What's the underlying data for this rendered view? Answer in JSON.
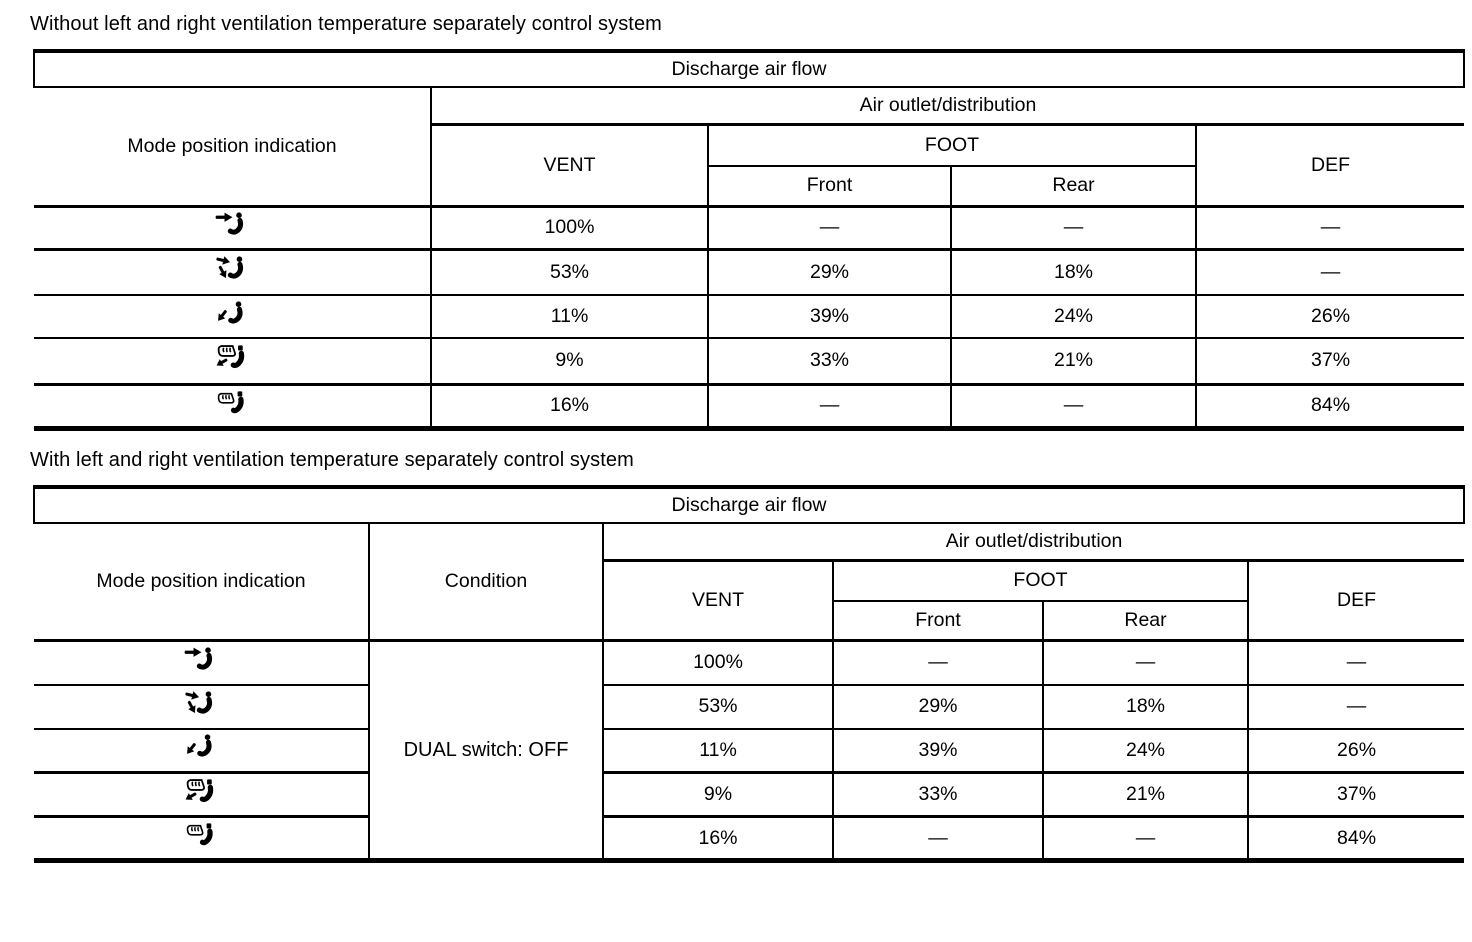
{
  "page_background": "#ffffff",
  "text_color": "#000000",
  "sections": [
    {
      "title": "Without left and right ventilation temperature separately control system",
      "table": {
        "caption": "Discharge air flow",
        "headers": {
          "mode": "Mode position indication",
          "air": "Air outlet/distribution",
          "vent": "VENT",
          "foot": "FOOT",
          "front": "Front",
          "rear": "Rear",
          "def": "DEF"
        },
        "rows": [
          {
            "mode_icon": "vent-mode-icon",
            "vent": "100%",
            "front": "—",
            "rear": "—",
            "def": "—"
          },
          {
            "mode_icon": "bilevel-mode-icon",
            "vent": "53%",
            "front": "29%",
            "rear": "18%",
            "def": "—"
          },
          {
            "mode_icon": "foot-mode-icon",
            "vent": "11%",
            "front": "39%",
            "rear": "24%",
            "def": "26%"
          },
          {
            "mode_icon": "foot-defrost-mode-icon",
            "vent": "9%",
            "front": "33%",
            "rear": "21%",
            "def": "37%"
          },
          {
            "mode_icon": "defrost-mode-icon",
            "vent": "16%",
            "front": "—",
            "rear": "—",
            "def": "84%"
          }
        ]
      }
    },
    {
      "title": "With left and right ventilation temperature separately control system",
      "table": {
        "caption": "Discharge air flow",
        "headers": {
          "mode": "Mode position indication",
          "condition": "Condition",
          "air": "Air outlet/distribution",
          "vent": "VENT",
          "foot": "FOOT",
          "front": "Front",
          "rear": "Rear",
          "def": "DEF"
        },
        "condition_value": "DUAL switch: OFF",
        "rows": [
          {
            "mode_icon": "vent-mode-icon",
            "vent": "100%",
            "front": "—",
            "rear": "—",
            "def": "—"
          },
          {
            "mode_icon": "bilevel-mode-icon",
            "vent": "53%",
            "front": "29%",
            "rear": "18%",
            "def": "—"
          },
          {
            "mode_icon": "foot-mode-icon",
            "vent": "11%",
            "front": "39%",
            "rear": "24%",
            "def": "26%"
          },
          {
            "mode_icon": "foot-defrost-mode-icon",
            "vent": "9%",
            "front": "33%",
            "rear": "21%",
            "def": "37%"
          },
          {
            "mode_icon": "defrost-mode-icon",
            "vent": "16%",
            "front": "—",
            "rear": "—",
            "def": "84%"
          }
        ]
      }
    }
  ]
}
